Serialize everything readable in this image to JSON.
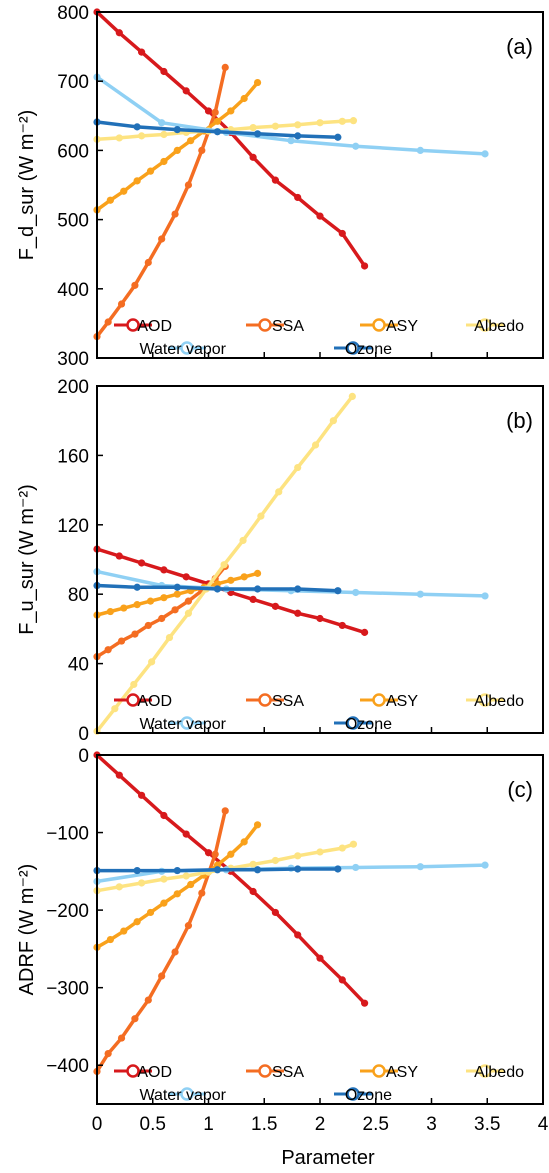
{
  "chart_data": [
    {
      "type": "line",
      "panel_label": "(a)",
      "ylabel": "F_d_sur (W m⁻²)",
      "ylim": [
        300,
        800
      ],
      "yticks": [
        300,
        400,
        500,
        600,
        700,
        800
      ],
      "xlim": [
        0,
        4
      ],
      "series": [
        {
          "name": "AOD",
          "color": "#d7191c",
          "x": [
            0,
            0.2,
            0.4,
            0.6,
            0.8,
            1.0,
            1.2,
            1.4,
            1.6,
            1.8,
            2.0,
            2.2,
            2.4
          ],
          "y": [
            800,
            770,
            742,
            714,
            686,
            657,
            626,
            590,
            557,
            532,
            505,
            480,
            433
          ]
        },
        {
          "name": "SSA",
          "color": "#f46d22",
          "x": [
            0,
            0.1,
            0.22,
            0.34,
            0.46,
            0.58,
            0.7,
            0.82,
            0.94,
            1.06,
            1.15
          ],
          "y": [
            331,
            352,
            378,
            405,
            438,
            472,
            508,
            550,
            600,
            655,
            720
          ]
        },
        {
          "name": "ASY",
          "color": "#f9a11b",
          "x": [
            0,
            0.12,
            0.24,
            0.36,
            0.48,
            0.6,
            0.72,
            0.84,
            0.96,
            1.08,
            1.2,
            1.32,
            1.44
          ],
          "y": [
            514,
            528,
            541,
            556,
            570,
            584,
            600,
            614,
            628,
            642,
            657,
            675,
            698
          ]
        },
        {
          "name": "Albedo",
          "color": "#fde381",
          "x": [
            0,
            0.2,
            0.4,
            0.6,
            0.8,
            1.0,
            1.2,
            1.4,
            1.6,
            1.8,
            2.0,
            2.2,
            2.3
          ],
          "y": [
            616,
            618,
            621,
            623,
            626,
            628,
            630,
            633,
            635,
            637,
            640,
            642,
            643
          ]
        },
        {
          "name": "Water vapor",
          "color": "#8fd0f4",
          "x": [
            0,
            0.58,
            1.16,
            1.74,
            2.32,
            2.9,
            3.48
          ],
          "y": [
            706,
            640,
            626,
            614,
            606,
            600,
            595
          ]
        },
        {
          "name": "Ozone",
          "color": "#2170b8",
          "x": [
            0,
            0.36,
            0.72,
            1.08,
            1.44,
            1.8,
            2.16
          ],
          "y": [
            641,
            634,
            630,
            627,
            624,
            621,
            619
          ]
        }
      ]
    },
    {
      "type": "line",
      "panel_label": "(b)",
      "ylabel": "F_u_sur (W m⁻²)",
      "ylim": [
        0,
        200
      ],
      "yticks": [
        0,
        40,
        80,
        120,
        160,
        200
      ],
      "xlim": [
        0,
        4
      ],
      "series": [
        {
          "name": "AOD",
          "color": "#d7191c",
          "x": [
            0,
            0.2,
            0.4,
            0.6,
            0.8,
            1.0,
            1.2,
            1.4,
            1.6,
            1.8,
            2.0,
            2.2,
            2.4
          ],
          "y": [
            106,
            102,
            98,
            94,
            90,
            86,
            81,
            77,
            73,
            69,
            66,
            62,
            58
          ]
        },
        {
          "name": "SSA",
          "color": "#f46d22",
          "x": [
            0,
            0.1,
            0.22,
            0.34,
            0.46,
            0.58,
            0.7,
            0.82,
            0.94,
            1.06,
            1.15
          ],
          "y": [
            44,
            48,
            53,
            57,
            62,
            66,
            71,
            76,
            82,
            89,
            96
          ]
        },
        {
          "name": "ASY",
          "color": "#f9a11b",
          "x": [
            0,
            0.12,
            0.24,
            0.36,
            0.48,
            0.6,
            0.72,
            0.84,
            0.96,
            1.08,
            1.2,
            1.32,
            1.44
          ],
          "y": [
            68,
            70,
            72,
            74,
            76,
            78,
            80,
            82,
            84,
            86,
            88,
            90,
            92
          ]
        },
        {
          "name": "Albedo",
          "color": "#fde381",
          "x": [
            0,
            0.16,
            0.33,
            0.49,
            0.65,
            0.82,
            0.98,
            1.14,
            1.31,
            1.47,
            1.63,
            1.8,
            1.96,
            2.12,
            2.29
          ],
          "y": [
            1,
            14,
            28,
            41,
            55,
            69,
            83,
            97,
            111,
            125,
            139,
            153,
            166,
            180,
            194
          ]
        },
        {
          "name": "Water vapor",
          "color": "#8fd0f4",
          "x": [
            0,
            0.58,
            1.16,
            1.74,
            2.32,
            2.9,
            3.48
          ],
          "y": [
            93,
            85,
            83,
            82,
            81,
            80,
            79
          ]
        },
        {
          "name": "Ozone",
          "color": "#2170b8",
          "x": [
            0,
            0.36,
            0.72,
            1.08,
            1.44,
            1.8,
            2.16
          ],
          "y": [
            85,
            84,
            84,
            83,
            83,
            83,
            82
          ]
        }
      ]
    },
    {
      "type": "line",
      "panel_label": "(c)",
      "ylabel": "ADRF (W m⁻²)",
      "ylim": [
        -450,
        0
      ],
      "yticks": [
        0,
        -100,
        -200,
        -300,
        -400
      ],
      "ytick_labels": [
        "0",
        "−100",
        "−200",
        "−300",
        "−400"
      ],
      "xlim": [
        0,
        4
      ],
      "xticks": [
        0,
        0.5,
        1,
        1.5,
        2,
        2.5,
        3,
        3.5,
        4
      ],
      "xlabel": "Parameter",
      "series": [
        {
          "name": "AOD",
          "color": "#d7191c",
          "x": [
            0,
            0.2,
            0.4,
            0.6,
            0.8,
            1.0,
            1.2,
            1.4,
            1.6,
            1.8,
            2.0,
            2.2,
            2.4
          ],
          "y": [
            0,
            -26,
            -52,
            -78,
            -102,
            -126,
            -150,
            -176,
            -203,
            -232,
            -262,
            -290,
            -320
          ]
        },
        {
          "name": "SSA",
          "color": "#f46d22",
          "x": [
            0,
            0.1,
            0.22,
            0.34,
            0.46,
            0.58,
            0.7,
            0.82,
            0.94,
            1.06,
            1.15
          ],
          "y": [
            -408,
            -385,
            -365,
            -340,
            -316,
            -285,
            -254,
            -220,
            -178,
            -128,
            -72
          ]
        },
        {
          "name": "ASY",
          "color": "#f9a11b",
          "x": [
            0,
            0.12,
            0.24,
            0.36,
            0.48,
            0.6,
            0.72,
            0.84,
            0.96,
            1.08,
            1.2,
            1.32,
            1.44
          ],
          "y": [
            -248,
            -238,
            -227,
            -215,
            -203,
            -191,
            -179,
            -167,
            -155,
            -142,
            -128,
            -112,
            -90
          ]
        },
        {
          "name": "Albedo",
          "color": "#fde381",
          "x": [
            0,
            0.2,
            0.4,
            0.6,
            0.8,
            1.0,
            1.2,
            1.4,
            1.6,
            1.8,
            2.0,
            2.2,
            2.3
          ],
          "y": [
            -175,
            -170,
            -165,
            -160,
            -156,
            -151,
            -146,
            -141,
            -136,
            -130,
            -125,
            -120,
            -115
          ]
        },
        {
          "name": "Water vapor",
          "color": "#8fd0f4",
          "x": [
            0,
            0.58,
            1.16,
            1.74,
            2.32,
            2.9,
            3.48
          ],
          "y": [
            -163,
            -150,
            -148,
            -146,
            -145,
            -144,
            -142
          ]
        },
        {
          "name": "Ozone",
          "color": "#2170b8",
          "x": [
            0,
            0.36,
            0.72,
            1.08,
            1.44,
            1.8,
            2.16
          ],
          "y": [
            -149,
            -149,
            -149,
            -148,
            -148,
            -147,
            -147
          ]
        }
      ]
    }
  ],
  "legend": {
    "placement": "bottom-right",
    "row1": [
      "AOD",
      "SSA",
      "ASY",
      "Albedo"
    ],
    "row2": [
      "Water vapor",
      "Ozone"
    ]
  }
}
